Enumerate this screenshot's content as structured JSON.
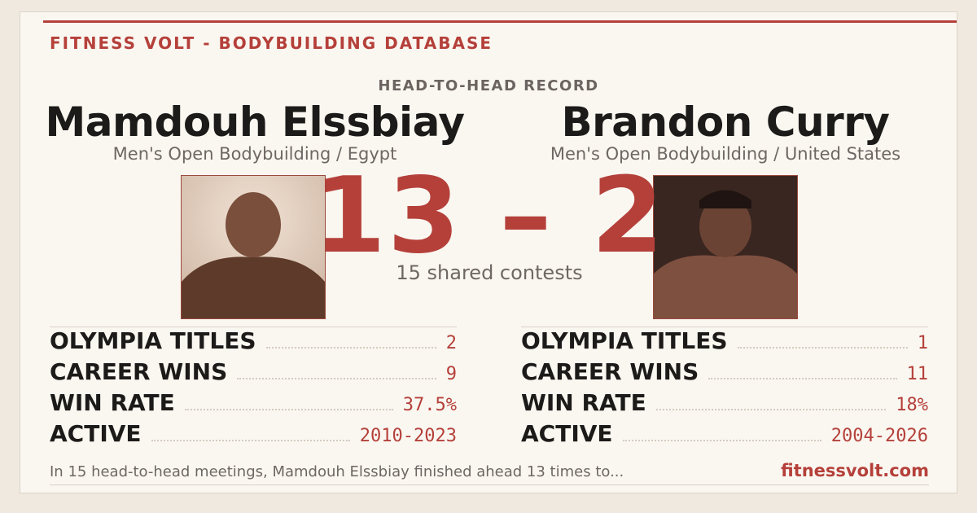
{
  "header": {
    "title": "FITNESS VOLT - BODYBUILDING DATABASE"
  },
  "record": {
    "label": "HEAD-TO-HEAD RECORD",
    "score": "13 – 2",
    "shared": "15 shared contests"
  },
  "athletes": [
    {
      "name": "Mamdouh Elssbiay",
      "division": "Men's Open Bodybuilding / Egypt",
      "stats": [
        {
          "label": "OLYMPIA TITLES",
          "value": "2"
        },
        {
          "label": "CAREER WINS",
          "value": "9"
        },
        {
          "label": "WIN RATE",
          "value": "37.5%"
        },
        {
          "label": "ACTIVE",
          "value": "2010-2023"
        }
      ]
    },
    {
      "name": "Brandon Curry",
      "division": "Men's Open Bodybuilding / United States",
      "stats": [
        {
          "label": "OLYMPIA TITLES",
          "value": "1"
        },
        {
          "label": "CAREER WINS",
          "value": "11"
        },
        {
          "label": "WIN RATE",
          "value": "18%"
        },
        {
          "label": "ACTIVE",
          "value": "2004-2026"
        }
      ]
    }
  ],
  "footer": {
    "summary": "In 15 head-to-head meetings, Mamdouh Elssbiay finished ahead 13 times to...",
    "site": "fitnessvolt.com"
  }
}
